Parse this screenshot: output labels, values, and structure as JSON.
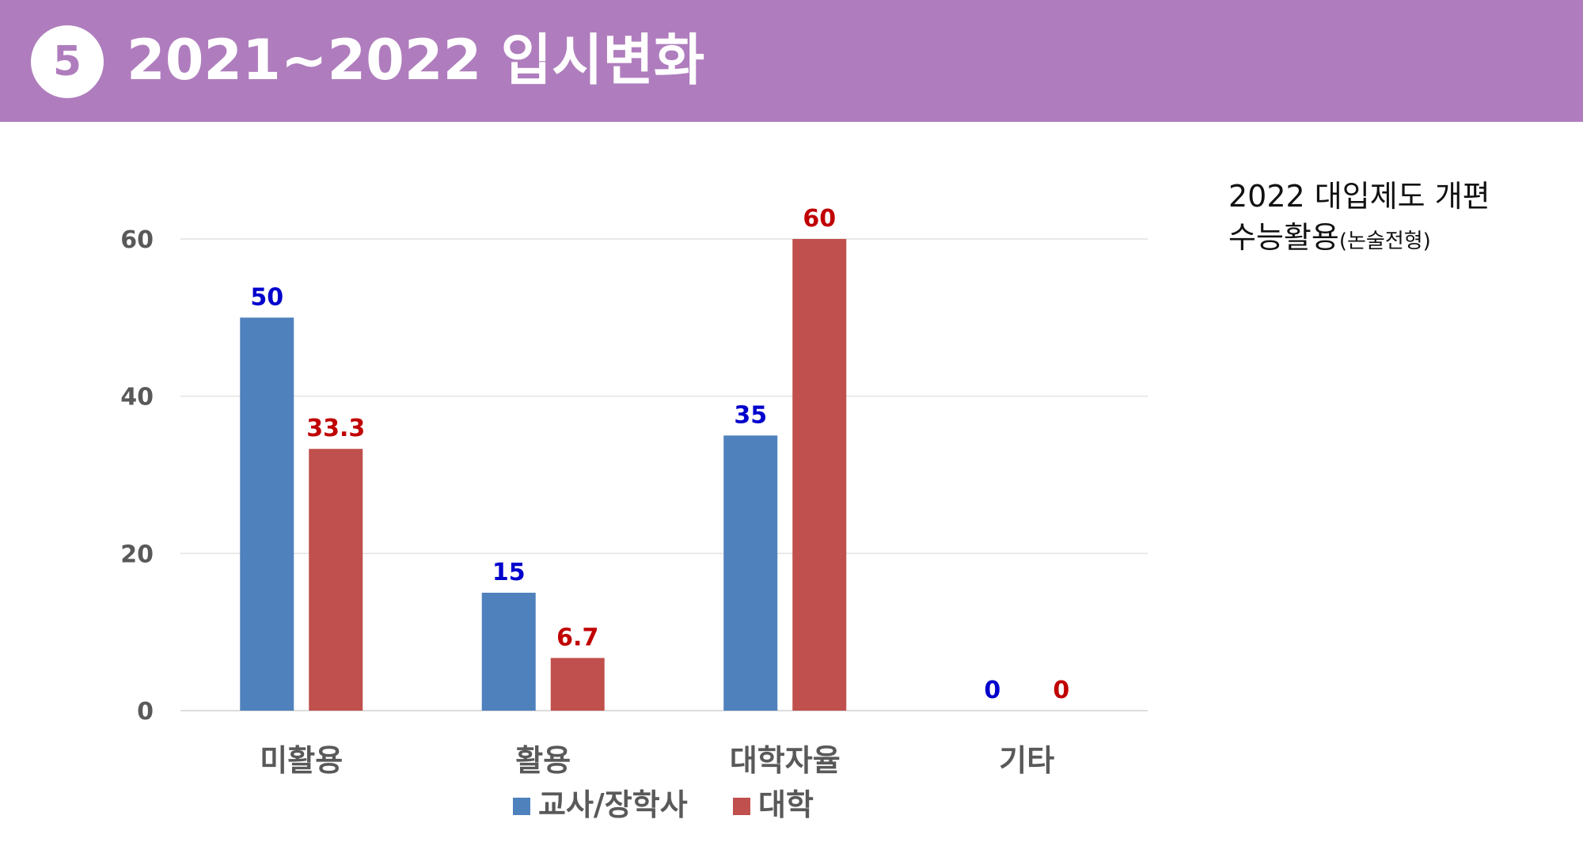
{
  "header": {
    "badge": "5",
    "title": "2021~2022 입시변화",
    "background_color": "#AF7DBD"
  },
  "side_note": {
    "line1": "2022 대입제도 개편",
    "line2_main": "수능활용",
    "line2_small": "(논술전형)"
  },
  "chart_data": {
    "type": "bar",
    "categories": [
      "미활용",
      "활용",
      "대학자율",
      "기타"
    ],
    "series": [
      {
        "name": "교사/장학사",
        "values": [
          50,
          15,
          35,
          0
        ],
        "color": "#4F81BD",
        "label_color": "#0000CC"
      },
      {
        "name": "대학",
        "values": [
          33.3,
          6.7,
          60,
          0
        ],
        "color": "#C0504D",
        "label_color": "#C00000"
      }
    ],
    "data_labels": [
      [
        "50",
        "15",
        "35",
        "0"
      ],
      [
        "33.3",
        "6.7",
        "60",
        "0"
      ]
    ],
    "yticks": [
      0,
      20,
      40,
      60
    ],
    "ylim": [
      0,
      60
    ],
    "grid": true,
    "legend_position": "bottom",
    "title": "",
    "xlabel": "",
    "ylabel": ""
  }
}
